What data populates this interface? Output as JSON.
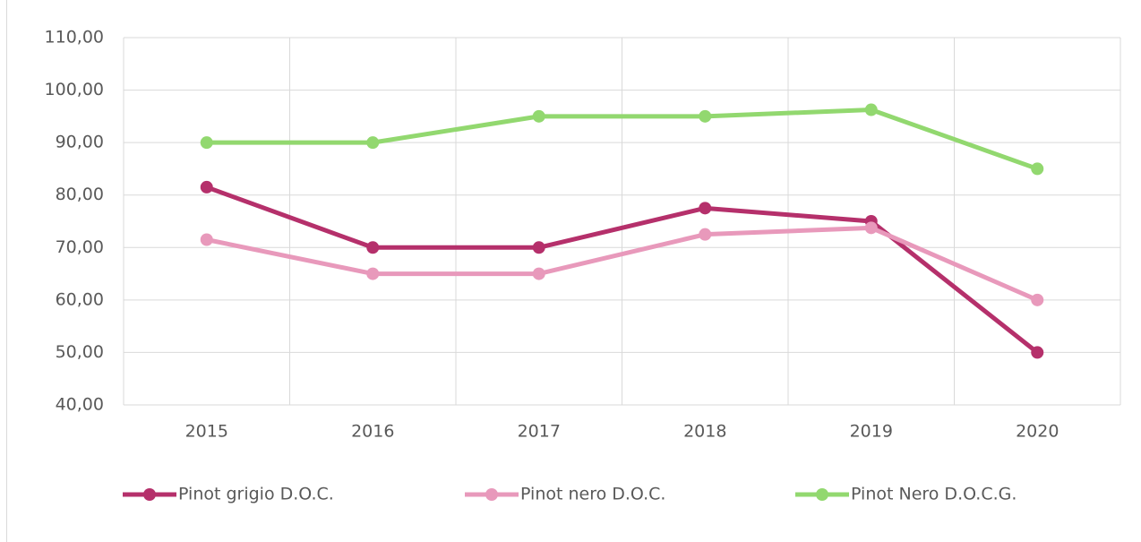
{
  "chart_data": {
    "type": "line",
    "categories": [
      "2015",
      "2016",
      "2017",
      "2018",
      "2019",
      "2020"
    ],
    "series": [
      {
        "name": "Pinot grigio D.O.C.",
        "color": "#b5306b",
        "values": [
          81.5,
          70,
          70,
          77.5,
          75,
          50
        ]
      },
      {
        "name": "Pinot nero D.O.C.",
        "color": "#e899bb",
        "values": [
          71.5,
          65,
          65,
          72.5,
          73.75,
          60
        ]
      },
      {
        "name": "Pinot Nero D.O.C.G.",
        "color": "#92d86f",
        "values": [
          90,
          90,
          95,
          95,
          96.25,
          85
        ]
      }
    ],
    "ylim": [
      40,
      110
    ],
    "yticks": [
      {
        "value": 40,
        "label": "40,00"
      },
      {
        "value": 50,
        "label": "50,00"
      },
      {
        "value": 60,
        "label": "60,00"
      },
      {
        "value": 70,
        "label": "70,00"
      },
      {
        "value": 80,
        "label": "80,00"
      },
      {
        "value": 90,
        "label": "90,00"
      },
      {
        "value": 100,
        "label": "100,00"
      },
      {
        "value": 110,
        "label": "110,00"
      }
    ],
    "grid": true,
    "legend": "bottom"
  }
}
